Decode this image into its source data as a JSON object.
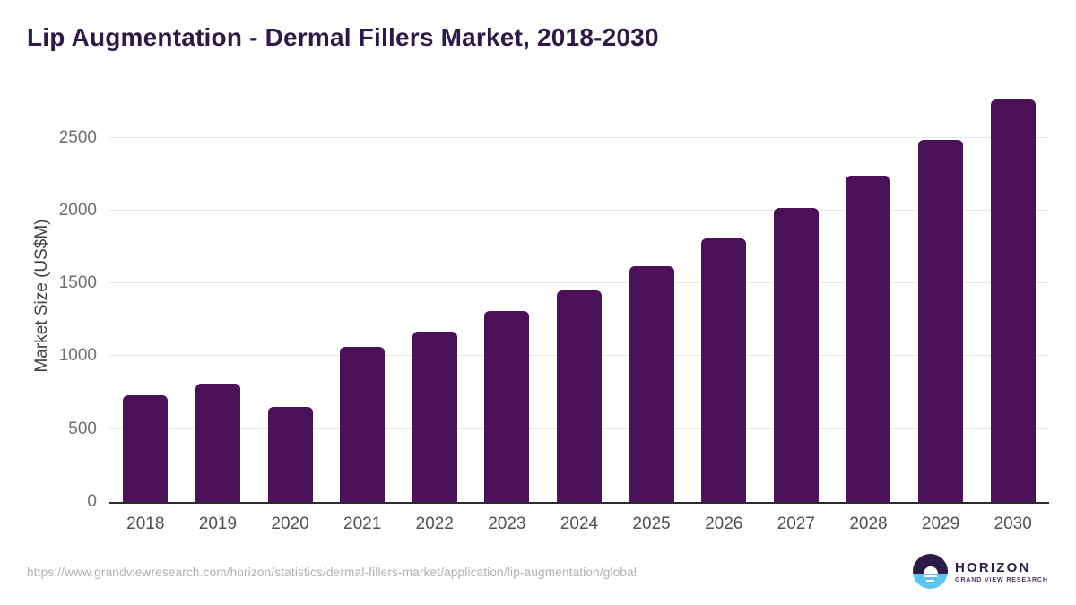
{
  "header": {
    "title_color": "#2e1a47"
  },
  "chart_data": {
    "type": "bar",
    "title": "Lip Augmentation - Dermal Fillers Market, 2018-2030",
    "categories": [
      "2018",
      "2019",
      "2020",
      "2021",
      "2022",
      "2023",
      "2024",
      "2025",
      "2026",
      "2027",
      "2028",
      "2029",
      "2030"
    ],
    "values": [
      730,
      810,
      650,
      1065,
      1170,
      1310,
      1455,
      1620,
      1810,
      2015,
      2240,
      2485,
      2765
    ],
    "xlabel": "",
    "ylabel": "Market Size (US$M)",
    "yticks": [
      0,
      500,
      1000,
      1500,
      2000,
      2500
    ],
    "ylim": [
      0,
      2830
    ],
    "grid": "horizontal",
    "legend": "none",
    "bar_color": "#4a1158",
    "gridline_color": "#e6e6e6",
    "axis_line_color": "#2b2b2b"
  },
  "footer": {
    "source_url": "https://www.grandviewresearch.com/horizon/statistics/dermal-fillers-market/application/lip-augmentation/global",
    "logo": {
      "name": "HORIZON",
      "subtitle": "GRAND VIEW RESEARCH",
      "circle_top_color": "#2e1a47",
      "circle_bottom_color": "#5ec5f2"
    }
  }
}
